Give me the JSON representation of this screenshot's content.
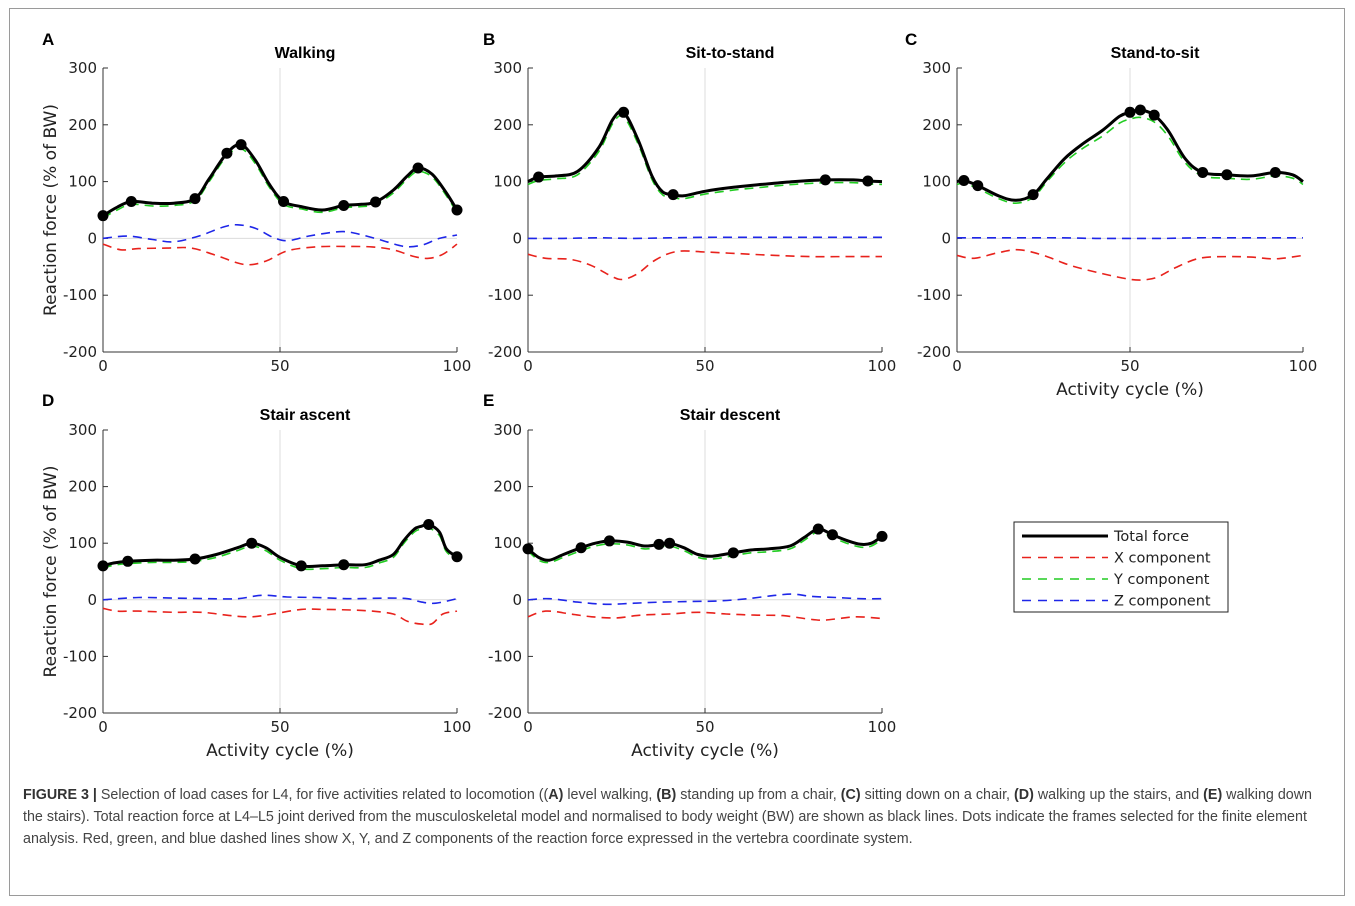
{
  "colors": {
    "total": "#000000",
    "x_component": "#e8221c",
    "y_component": "#22cc22",
    "z_component": "#1e26e8",
    "grid": "#dcdcdc",
    "axis": "#333333",
    "caption_text": "#444444"
  },
  "chart_data": [
    {
      "type": "line",
      "panel": "A",
      "title": "Walking",
      "xlabel": "",
      "ylabel": "Reaction force (% of BW)",
      "xlim": [
        0,
        100
      ],
      "ylim": [
        -200,
        300
      ],
      "xticks": [
        "0",
        "50",
        "100"
      ],
      "yticks": [
        "300",
        "200",
        "100",
        "0",
        "-100",
        "-200"
      ],
      "grid": "x=50 and y=0 gridlines",
      "series": [
        {
          "name": "Total force",
          "x": [
            0,
            4,
            8,
            14,
            20,
            26,
            30,
            35,
            39,
            43,
            47,
            51,
            56,
            62,
            68,
            73,
            77,
            82,
            86,
            89,
            93,
            97,
            100
          ],
          "y": [
            40,
            55,
            65,
            62,
            62,
            70,
            105,
            150,
            165,
            138,
            95,
            65,
            56,
            50,
            58,
            60,
            64,
            85,
            110,
            124,
            113,
            80,
            50
          ]
        },
        {
          "name": "X component",
          "x": [
            0,
            5,
            10,
            18,
            25,
            32,
            40,
            46,
            52,
            60,
            68,
            76,
            82,
            88,
            92,
            96,
            100
          ],
          "y": [
            -10,
            -20,
            -18,
            -17,
            -17,
            -30,
            -46,
            -40,
            -22,
            -15,
            -14,
            -15,
            -20,
            -32,
            -35,
            -28,
            -10
          ]
        },
        {
          "name": "Y component",
          "x": [
            0,
            4,
            8,
            14,
            20,
            26,
            30,
            35,
            39,
            43,
            47,
            51,
            56,
            62,
            68,
            73,
            77,
            82,
            86,
            89,
            93,
            97,
            100
          ],
          "y": [
            36,
            50,
            60,
            57,
            58,
            66,
            100,
            145,
            158,
            132,
            90,
            60,
            52,
            46,
            54,
            56,
            60,
            80,
            105,
            118,
            108,
            75,
            45
          ]
        },
        {
          "name": "Z component",
          "x": [
            0,
            7,
            14,
            20,
            27,
            34,
            38,
            43,
            48,
            52,
            58,
            64,
            68,
            72,
            78,
            85,
            90,
            95,
            100
          ],
          "y": [
            0,
            4,
            -2,
            -6,
            4,
            20,
            24,
            18,
            2,
            -4,
            4,
            10,
            12,
            8,
            -2,
            -14,
            -12,
            0,
            6
          ]
        }
      ],
      "markers": {
        "x": [
          0,
          8,
          26,
          35,
          39,
          51,
          68,
          77,
          89,
          100
        ],
        "y": [
          40,
          65,
          70,
          150,
          165,
          65,
          58,
          64,
          124,
          50
        ]
      }
    },
    {
      "type": "line",
      "panel": "B",
      "title": "Sit-to-stand",
      "xlabel": "",
      "ylabel": "",
      "xlim": [
        0,
        100
      ],
      "ylim": [
        -200,
        300
      ],
      "xticks": [
        "0",
        "50",
        "100"
      ],
      "yticks": [
        "300",
        "200",
        "100",
        "0",
        "-100",
        "-200"
      ],
      "grid": "x=50 and y=0 gridlines",
      "series": [
        {
          "name": "Total force",
          "x": [
            0,
            3,
            8,
            14,
            20,
            24,
            27,
            31,
            35,
            38,
            41,
            44,
            50,
            58,
            66,
            75,
            84,
            92,
            96,
            100
          ],
          "y": [
            100,
            108,
            110,
            118,
            160,
            210,
            222,
            175,
            110,
            82,
            77,
            75,
            83,
            90,
            95,
            100,
            103,
            103,
            101,
            100
          ]
        },
        {
          "name": "X component",
          "x": [
            0,
            5,
            12,
            18,
            24,
            27,
            31,
            36,
            42,
            50,
            60,
            70,
            80,
            90,
            100
          ],
          "y": [
            -28,
            -35,
            -37,
            -48,
            -68,
            -72,
            -62,
            -38,
            -23,
            -24,
            -27,
            -30,
            -32,
            -32,
            -32
          ]
        },
        {
          "name": "Y component",
          "x": [
            0,
            3,
            8,
            14,
            20,
            24,
            27,
            31,
            35,
            38,
            41,
            44,
            50,
            58,
            66,
            75,
            84,
            92,
            96,
            100
          ],
          "y": [
            95,
            102,
            105,
            112,
            153,
            203,
            214,
            168,
            104,
            77,
            72,
            70,
            78,
            85,
            90,
            95,
            98,
            98,
            96,
            95
          ]
        },
        {
          "name": "Z component",
          "x": [
            0,
            10,
            20,
            30,
            40,
            50,
            60,
            70,
            80,
            90,
            100
          ],
          "y": [
            0,
            0,
            1,
            0,
            1,
            2,
            2,
            2,
            2,
            2,
            2
          ]
        }
      ],
      "markers": {
        "x": [
          3,
          27,
          41,
          84,
          96
        ],
        "y": [
          108,
          222,
          77,
          103,
          101
        ]
      }
    },
    {
      "type": "line",
      "panel": "C",
      "title": "Stand-to-sit",
      "xlabel": "Activity cycle (%)",
      "ylabel": "",
      "xlim": [
        0,
        100
      ],
      "ylim": [
        -200,
        300
      ],
      "xticks": [
        "0",
        "50",
        "100"
      ],
      "yticks": [
        "300",
        "200",
        "100",
        "0",
        "-100",
        "-200"
      ],
      "grid": "x=50 and y=0 gridlines",
      "series": [
        {
          "name": "Total force",
          "x": [
            0,
            2,
            6,
            12,
            17,
            22,
            26,
            31,
            36,
            42,
            47,
            50,
            53,
            57,
            61,
            66,
            71,
            78,
            85,
            92,
            97,
            100
          ],
          "y": [
            100,
            102,
            93,
            75,
            67,
            77,
            105,
            140,
            165,
            190,
            215,
            222,
            226,
            217,
            190,
            140,
            116,
            112,
            110,
            116,
            112,
            100
          ]
        },
        {
          "name": "X component",
          "x": [
            0,
            5,
            12,
            18,
            25,
            33,
            42,
            50,
            54,
            58,
            63,
            70,
            78,
            85,
            92,
            100
          ],
          "y": [
            -30,
            -35,
            -25,
            -20,
            -30,
            -48,
            -62,
            -72,
            -73,
            -68,
            -52,
            -35,
            -32,
            -33,
            -36,
            -30
          ]
        },
        {
          "name": "Y component",
          "x": [
            0,
            2,
            6,
            12,
            17,
            22,
            26,
            31,
            36,
            42,
            47,
            50,
            53,
            57,
            61,
            66,
            71,
            78,
            85,
            92,
            97,
            100
          ],
          "y": [
            95,
            97,
            88,
            70,
            62,
            72,
            100,
            133,
            157,
            180,
            203,
            210,
            213,
            205,
            180,
            133,
            110,
            106,
            104,
            110,
            106,
            95
          ]
        },
        {
          "name": "Z component",
          "x": [
            0,
            10,
            20,
            30,
            40,
            50,
            60,
            70,
            80,
            90,
            100
          ],
          "y": [
            1,
            1,
            1,
            1,
            0,
            0,
            0,
            1,
            1,
            1,
            1
          ]
        }
      ],
      "markers": {
        "x": [
          2,
          6,
          22,
          50,
          53,
          57,
          71,
          78,
          92
        ],
        "y": [
          102,
          93,
          77,
          222,
          226,
          217,
          116,
          112,
          116
        ]
      }
    },
    {
      "type": "line",
      "panel": "D",
      "title": "Stair ascent",
      "xlabel": "Activity cycle (%)",
      "ylabel": "Reaction force (% of BW)",
      "xlim": [
        0,
        100
      ],
      "ylim": [
        -200,
        300
      ],
      "xticks": [
        "0",
        "50",
        "100"
      ],
      "yticks": [
        "300",
        "200",
        "100",
        "0",
        "-100",
        "-200"
      ],
      "grid": "x=50 and y=0 gridlines",
      "series": [
        {
          "name": "Total force",
          "x": [
            0,
            3,
            7,
            14,
            20,
            26,
            32,
            38,
            42,
            46,
            50,
            56,
            62,
            68,
            74,
            78,
            82,
            85,
            88,
            90,
            92,
            95,
            97,
            100
          ],
          "y": [
            60,
            65,
            68,
            70,
            70,
            72,
            80,
            92,
            100,
            92,
            75,
            60,
            60,
            62,
            62,
            70,
            80,
            105,
            125,
            130,
            133,
            120,
            90,
            76
          ]
        },
        {
          "name": "X component",
          "x": [
            0,
            4,
            10,
            20,
            28,
            36,
            42,
            48,
            56,
            62,
            70,
            76,
            82,
            86,
            90,
            93,
            96,
            100
          ],
          "y": [
            -15,
            -20,
            -20,
            -22,
            -22,
            -28,
            -30,
            -25,
            -17,
            -17,
            -18,
            -20,
            -25,
            -38,
            -43,
            -42,
            -25,
            -20
          ]
        },
        {
          "name": "Y component",
          "x": [
            0,
            3,
            7,
            14,
            20,
            26,
            32,
            38,
            42,
            46,
            50,
            56,
            62,
            68,
            74,
            78,
            82,
            85,
            88,
            90,
            92,
            95,
            97,
            100
          ],
          "y": [
            56,
            61,
            64,
            66,
            66,
            68,
            75,
            87,
            95,
            87,
            70,
            55,
            55,
            57,
            57,
            65,
            75,
            100,
            120,
            125,
            127,
            114,
            85,
            72
          ]
        },
        {
          "name": "Z component",
          "x": [
            0,
            10,
            20,
            30,
            38,
            45,
            52,
            60,
            70,
            80,
            86,
            90,
            94,
            100
          ],
          "y": [
            0,
            4,
            3,
            2,
            2,
            8,
            5,
            4,
            2,
            3,
            2,
            -4,
            -6,
            2
          ]
        }
      ],
      "markers": {
        "x": [
          0,
          7,
          26,
          42,
          56,
          68,
          92,
          100
        ],
        "y": [
          60,
          68,
          72,
          100,
          60,
          62,
          133,
          76
        ]
      }
    },
    {
      "type": "line",
      "panel": "E",
      "title": "Stair descent",
      "xlabel": "Activity cycle (%)",
      "ylabel": "",
      "xlim": [
        0,
        100
      ],
      "ylim": [
        -200,
        300
      ],
      "xticks": [
        "0",
        "50",
        "100"
      ],
      "yticks": [
        "300",
        "200",
        "100",
        "0",
        "-100",
        "-200"
      ],
      "grid": "x=50 and y=0 gridlines",
      "series": [
        {
          "name": "Total force",
          "x": [
            0,
            3,
            6,
            10,
            15,
            19,
            23,
            28,
            33,
            37,
            40,
            44,
            48,
            52,
            58,
            63,
            68,
            74,
            78,
            82,
            86,
            90,
            94,
            97,
            100
          ],
          "y": [
            90,
            75,
            70,
            80,
            92,
            100,
            104,
            102,
            95,
            98,
            100,
            92,
            80,
            77,
            83,
            88,
            90,
            95,
            110,
            125,
            115,
            105,
            98,
            100,
            112
          ]
        },
        {
          "name": "X component",
          "x": [
            0,
            5,
            12,
            18,
            25,
            32,
            40,
            48,
            56,
            64,
            72,
            78,
            83,
            88,
            93,
            100
          ],
          "y": [
            -30,
            -20,
            -25,
            -30,
            -32,
            -27,
            -25,
            -22,
            -25,
            -27,
            -28,
            -33,
            -36,
            -33,
            -30,
            -33
          ]
        },
        {
          "name": "Y component",
          "x": [
            0,
            3,
            6,
            10,
            15,
            19,
            23,
            28,
            33,
            37,
            40,
            44,
            48,
            52,
            58,
            63,
            68,
            74,
            78,
            82,
            86,
            90,
            94,
            97,
            100
          ],
          "y": [
            86,
            70,
            66,
            75,
            87,
            95,
            99,
            97,
            90,
            93,
            95,
            87,
            75,
            72,
            78,
            83,
            85,
            90,
            105,
            120,
            110,
            100,
            93,
            95,
            107
          ]
        },
        {
          "name": "Z component",
          "x": [
            0,
            6,
            14,
            22,
            30,
            38,
            46,
            54,
            62,
            70,
            75,
            80,
            87,
            94,
            100
          ],
          "y": [
            0,
            2,
            -4,
            -8,
            -6,
            -4,
            -3,
            -2,
            2,
            8,
            10,
            6,
            4,
            2,
            2
          ]
        }
      ],
      "markers": {
        "x": [
          0,
          15,
          23,
          37,
          40,
          58,
          82,
          86,
          100
        ],
        "y": [
          90,
          92,
          104,
          98,
          100,
          83,
          125,
          115,
          112
        ]
      }
    }
  ],
  "legend": {
    "placement": "right of panel E",
    "items": [
      "Total force",
      "X component",
      "Y component",
      "Z component"
    ]
  },
  "caption": {
    "figure_label": "FIGURE 3 |",
    "part1": " Selection of load cases for L4, for five activities related to locomotion ((",
    "a_tag": "A)",
    "part2": " level walking, ",
    "b_tag": "(B)",
    "part3": " standing up from a chair, ",
    "c_tag": "(C)",
    "part4": " sitting down on a chair, ",
    "d_tag": "(D)",
    "part5": " walking up the stairs, and ",
    "e_tag": "(E)",
    "part6": " walking down the stairs). Total reaction force at L4–L5 joint derived from the musculoskeletal model and normalised to body weight (BW) are shown as black lines. Dots indicate the frames selected for the finite element analysis. Red, green, and blue dashed lines show X, Y, and Z components of the reaction force expressed in the vertebra coordinate system."
  }
}
